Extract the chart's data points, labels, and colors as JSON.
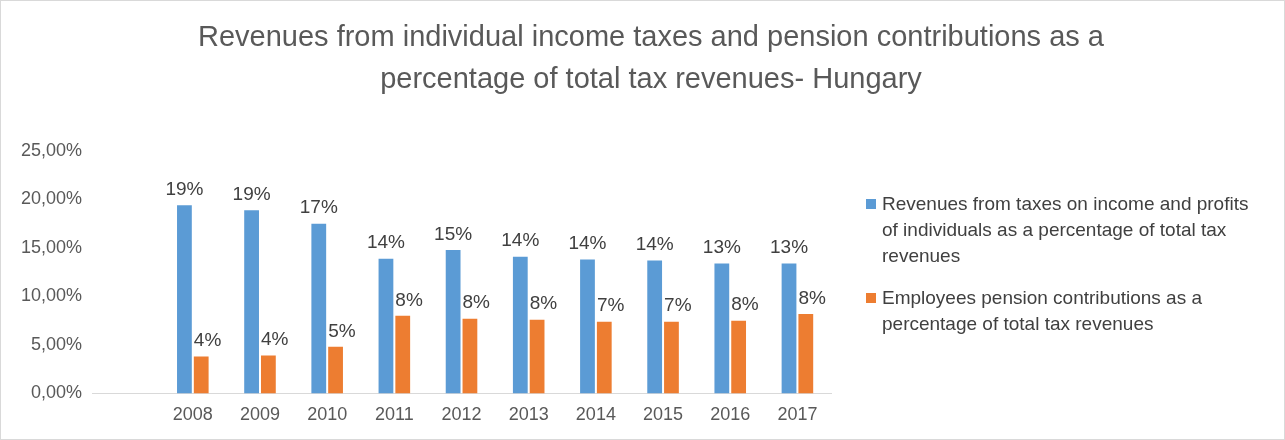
{
  "chart_data": {
    "type": "bar",
    "title": "Revenues from individual income taxes and pension contributions as a percentage of total tax revenues- Hungary",
    "categories": [
      null,
      "2008",
      "2009",
      "2010",
      "2011",
      "2012",
      "2013",
      "2014",
      "2015",
      "2016",
      "2017"
    ],
    "series": [
      {
        "name": "Revenues from taxes on income and profits of individuals as a percentage of total tax revenues",
        "color": "#5b9bd5",
        "values": [
          null,
          19.4,
          18.9,
          17.5,
          13.9,
          14.8,
          14.1,
          13.8,
          13.7,
          13.4,
          13.4
        ],
        "value_labels": [
          null,
          "19%",
          "19%",
          "17%",
          "14%",
          "15%",
          "14%",
          "14%",
          "14%",
          "13%",
          "13%"
        ]
      },
      {
        "name": "Employees pension contributions as a percentage of total tax revenues",
        "color": "#ed7d31",
        "values": [
          null,
          3.8,
          3.9,
          4.8,
          8.0,
          7.7,
          7.6,
          7.4,
          7.4,
          7.5,
          8.2
        ],
        "value_labels": [
          null,
          "4%",
          "4%",
          "5%",
          "8%",
          "8%",
          "8%",
          "7%",
          "7%",
          "8%",
          "8%"
        ]
      }
    ],
    "ylim": [
      0,
      25
    ],
    "yticks": [
      {
        "value": 0,
        "label": "0,00%"
      },
      {
        "value": 5,
        "label": "5,00%"
      },
      {
        "value": 10,
        "label": "10,00%"
      },
      {
        "value": 15,
        "label": "15,00%"
      },
      {
        "value": 20,
        "label": "20,00%"
      },
      {
        "value": 25,
        "label": "25,00%"
      }
    ],
    "grid": false,
    "legend": "right"
  }
}
